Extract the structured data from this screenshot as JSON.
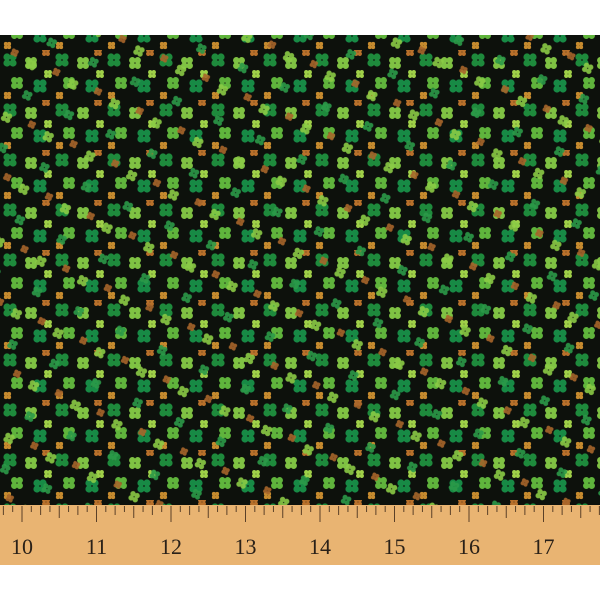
{
  "ruler": {
    "labels": [
      "10",
      "11",
      "12",
      "13",
      "14",
      "15",
      "16",
      "17"
    ]
  }
}
